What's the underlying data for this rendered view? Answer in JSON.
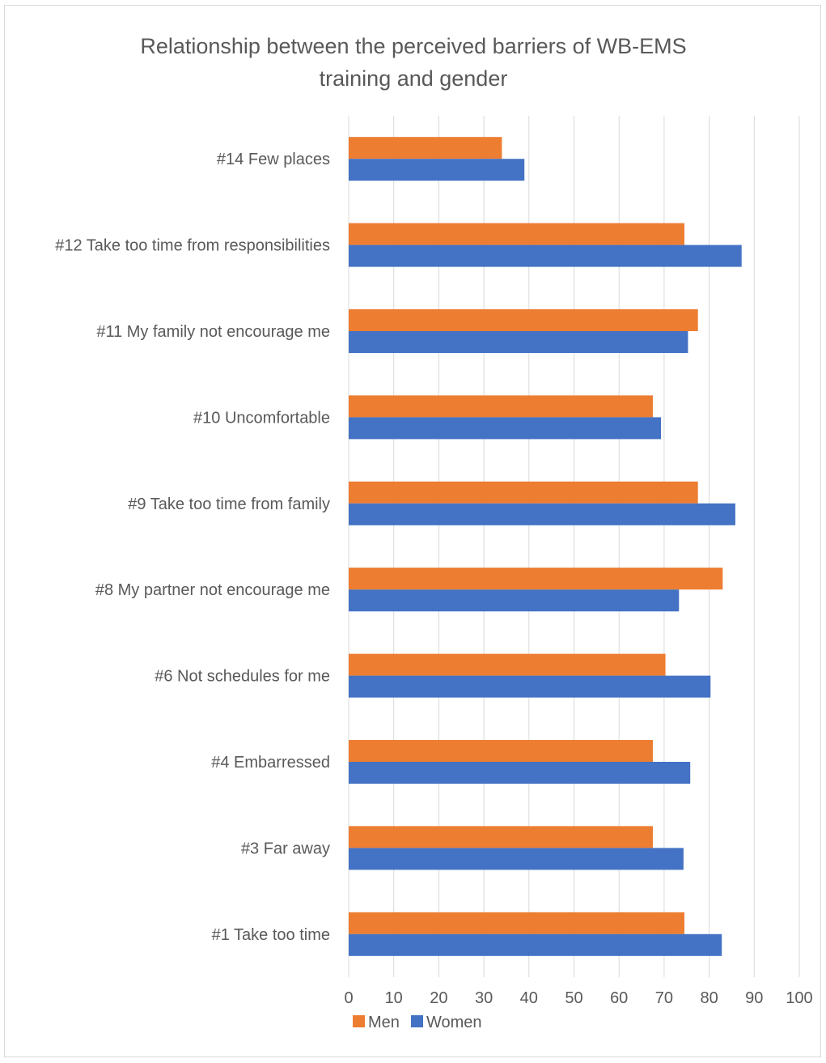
{
  "chart_data": {
    "type": "bar",
    "orientation": "horizontal",
    "title_lines": [
      "Relationship between the perceived barriers of WB-EMS",
      "training and gender"
    ],
    "categories": [
      "#14 Few places",
      "#12 Take too time from responsibilities",
      "#11 My family not encourage me",
      "#10 Uncomfortable",
      "#9 Take too time from family",
      "#8 My partner not encourage me",
      "#6 Not schedules for me",
      "#4 Embarressed",
      "#3 Far away",
      "#1 Take too time"
    ],
    "series": [
      {
        "name": "Men",
        "color": "#ed7d31",
        "values": [
          34,
          74.5,
          77.5,
          67.5,
          77.5,
          83,
          70.3,
          67.5,
          67.5,
          74.5
        ]
      },
      {
        "name": "Women",
        "color": "#4472c4",
        "values": [
          39,
          87.2,
          75.3,
          69.3,
          85.8,
          73.3,
          80.3,
          75.8,
          74.3,
          82.8
        ]
      }
    ],
    "xlim": [
      0,
      100
    ],
    "xticks": [
      "0",
      "10",
      "20",
      "30",
      "40",
      "50",
      "60",
      "70",
      "80",
      "90",
      "100"
    ],
    "grid": true,
    "legend_position": "bottom"
  }
}
